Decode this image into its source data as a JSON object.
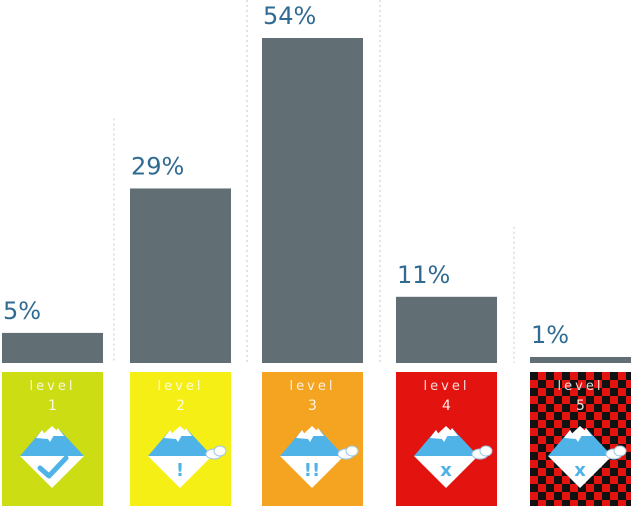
{
  "chart_data": {
    "type": "bar",
    "categories": [
      "1",
      "2",
      "3",
      "4",
      "5"
    ],
    "values": [
      5,
      29,
      54,
      11,
      1
    ],
    "value_labels": [
      "5%",
      "29%",
      "54%",
      "11%",
      "1%"
    ],
    "category_word": "level",
    "ylim": [
      0,
      54
    ],
    "grid": false,
    "bar_color": "#616e73",
    "label_color": "#2f6b92",
    "badges": [
      {
        "level": "1",
        "bg": "#cddd13",
        "symbol": "check-icon",
        "cloud": false
      },
      {
        "level": "2",
        "bg": "#f6ef16",
        "symbol": "!",
        "cloud": true
      },
      {
        "level": "3",
        "bg": "#f5a421",
        "symbol": "!!",
        "cloud": true
      },
      {
        "level": "4",
        "bg": "#e3140f",
        "symbol": "x",
        "cloud": true
      },
      {
        "level": "5",
        "bg": "checkered",
        "checker_colors": [
          "#e3140f",
          "#111111"
        ],
        "symbol": "x",
        "cloud": true
      }
    ]
  }
}
